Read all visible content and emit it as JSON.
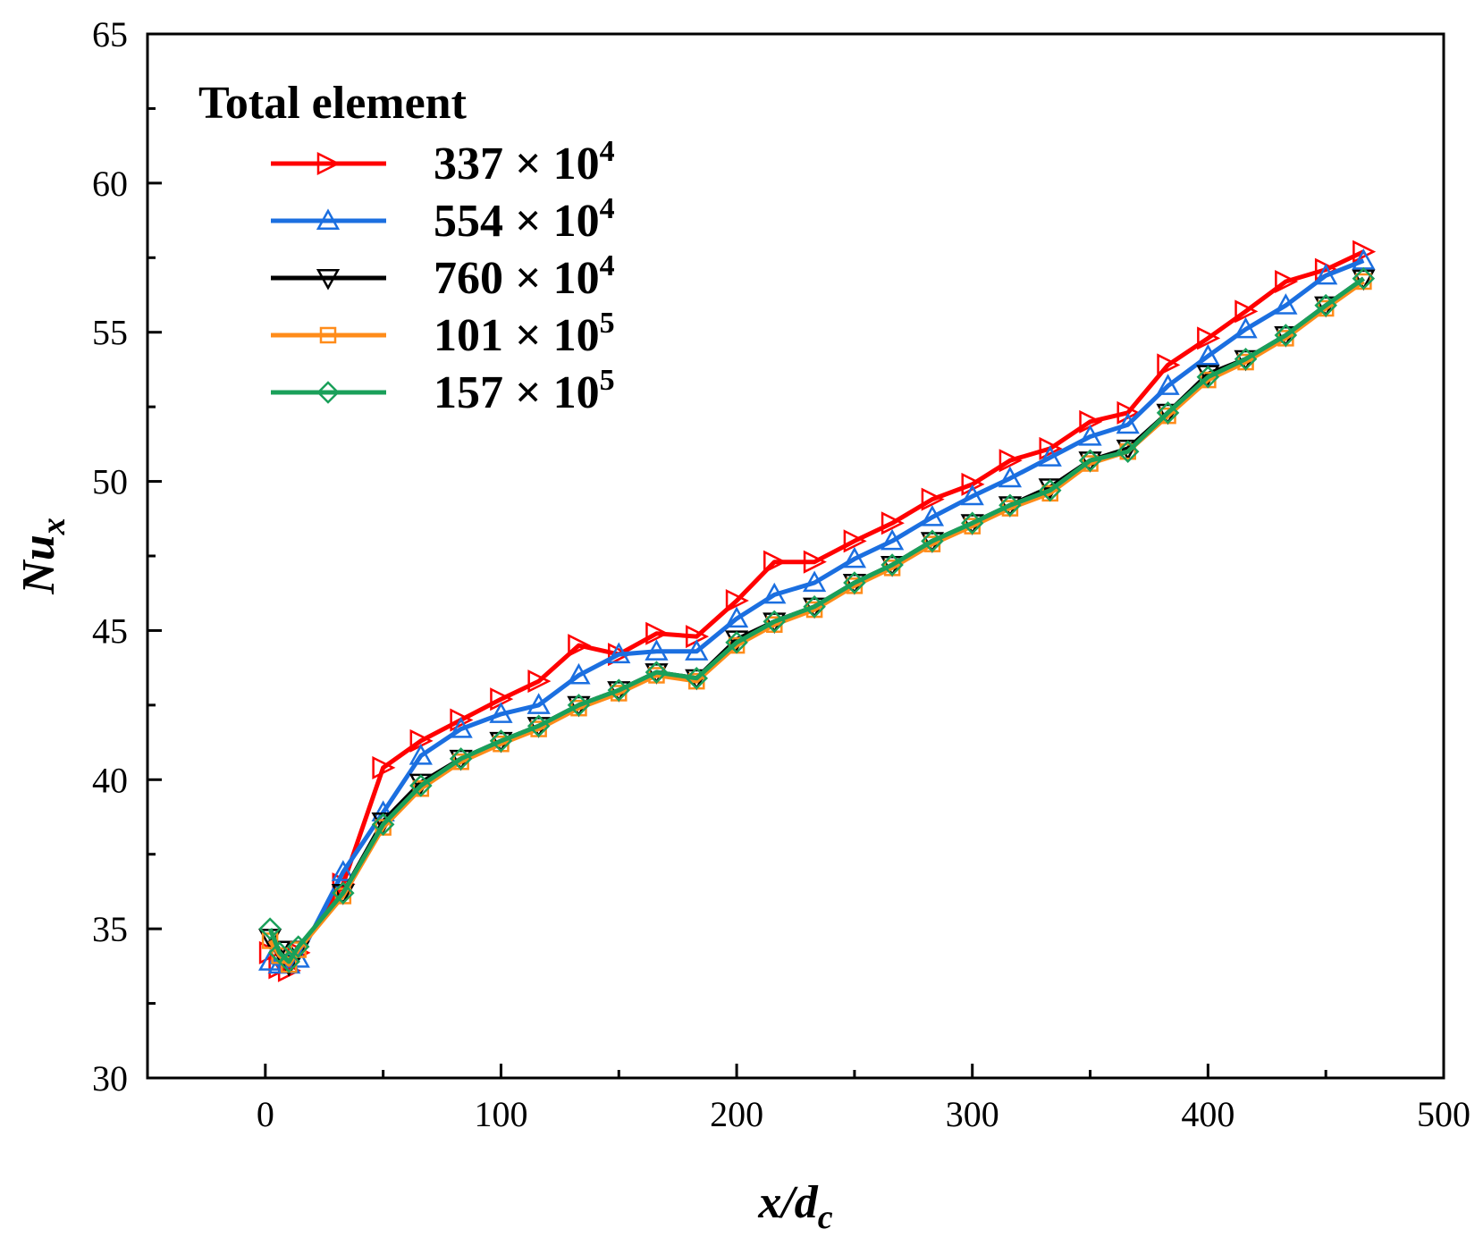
{
  "chart_data": {
    "type": "line",
    "title": "",
    "xlabel": "x/d_c",
    "ylabel": "Nu_x",
    "xlim": [
      -50,
      500
    ],
    "ylim": [
      30,
      65
    ],
    "xticks": [
      0,
      100,
      200,
      300,
      400,
      500
    ],
    "yticks": [
      30,
      35,
      40,
      45,
      50,
      55,
      60,
      65
    ],
    "xlabel_parts": {
      "main": "x/d",
      "sub": "c"
    },
    "ylabel_parts": {
      "main": "Nu",
      "sub": "x"
    },
    "legend": {
      "title": "Total element",
      "position": "top-left"
    },
    "x": [
      2,
      6,
      10,
      14,
      33,
      50,
      66,
      83,
      100,
      116,
      133,
      150,
      166,
      183,
      200,
      216,
      233,
      250,
      266,
      283,
      300,
      316,
      333,
      350,
      366,
      383,
      400,
      416,
      433,
      450,
      466
    ],
    "series": [
      {
        "name": "337 × 10^4",
        "label_main": "337 × 10",
        "label_exp": "4",
        "color": "#ff0000",
        "marker": "triangle-right",
        "values": [
          34.2,
          33.7,
          33.6,
          34.2,
          36.5,
          40.4,
          41.3,
          42.0,
          42.7,
          43.3,
          44.5,
          44.2,
          44.9,
          44.8,
          46.0,
          47.3,
          47.3,
          48.0,
          48.6,
          49.4,
          49.9,
          50.7,
          51.1,
          52.0,
          52.3,
          53.9,
          54.8,
          55.7,
          56.7,
          57.1,
          57.7
        ]
      },
      {
        "name": "554 × 10^4",
        "label_main": "554 × 10",
        "label_exp": "4",
        "color": "#1b6fe0",
        "marker": "triangle-up",
        "values": [
          33.9,
          33.8,
          33.8,
          34.0,
          36.9,
          38.9,
          40.8,
          41.7,
          42.2,
          42.5,
          43.5,
          44.2,
          44.3,
          44.3,
          45.4,
          46.2,
          46.6,
          47.4,
          48.0,
          48.8,
          49.5,
          50.1,
          50.8,
          51.5,
          51.9,
          53.2,
          54.2,
          55.1,
          55.9,
          56.9,
          57.4
        ]
      },
      {
        "name": "760 × 10^4",
        "label_main": "760 × 10",
        "label_exp": "4",
        "color": "#000000",
        "marker": "triangle-down",
        "values": [
          34.7,
          34.3,
          33.8,
          34.3,
          36.2,
          38.6,
          39.9,
          40.7,
          41.3,
          41.8,
          42.5,
          43.0,
          43.6,
          43.4,
          44.7,
          45.3,
          45.8,
          46.6,
          47.2,
          48.0,
          48.6,
          49.2,
          49.8,
          50.7,
          51.1,
          52.3,
          53.6,
          54.1,
          54.9,
          55.9,
          56.8
        ]
      },
      {
        "name": "101 × 10^5",
        "label_main": "101 × 10",
        "label_exp": "5",
        "color": "#ff8c1a",
        "marker": "square",
        "values": [
          34.6,
          34.1,
          33.8,
          34.3,
          36.1,
          38.4,
          39.7,
          40.6,
          41.2,
          41.7,
          42.4,
          42.9,
          43.5,
          43.3,
          44.5,
          45.2,
          45.7,
          46.5,
          47.1,
          47.9,
          48.5,
          49.1,
          49.6,
          50.6,
          51.0,
          52.2,
          53.4,
          54.0,
          54.8,
          55.8,
          56.7
        ]
      },
      {
        "name": "157 × 10^5",
        "label_main": "157 × 10",
        "label_exp": "5",
        "color": "#1aa05a",
        "marker": "diamond",
        "values": [
          35.0,
          34.2,
          33.9,
          34.4,
          36.2,
          38.5,
          39.8,
          40.7,
          41.3,
          41.8,
          42.5,
          43.0,
          43.6,
          43.4,
          44.6,
          45.3,
          45.8,
          46.6,
          47.2,
          48.0,
          48.6,
          49.2,
          49.7,
          50.7,
          51.0,
          52.3,
          53.5,
          54.1,
          54.9,
          55.9,
          56.8
        ]
      }
    ]
  }
}
